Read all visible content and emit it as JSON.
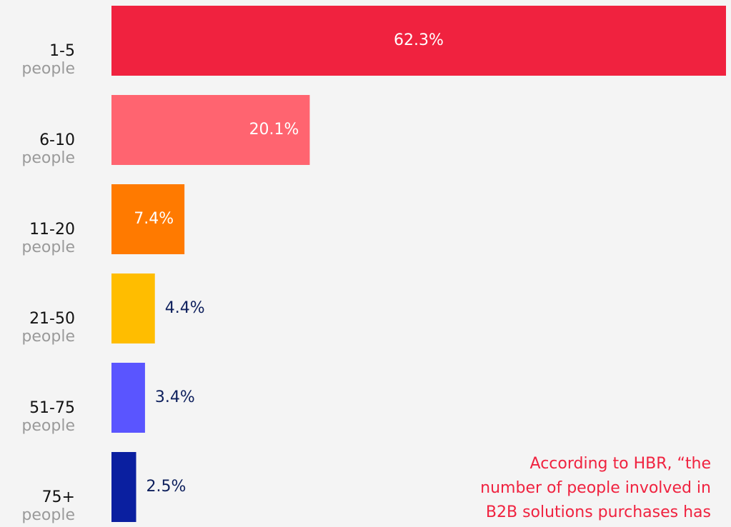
{
  "chart_data": {
    "type": "bar",
    "orientation": "horizontal",
    "categories": [
      "1-5",
      "6-10",
      "11-20",
      "21-50",
      "51-75",
      "75+"
    ],
    "category_unit": "people",
    "values": [
      62.3,
      20.1,
      7.4,
      4.4,
      3.4,
      2.5
    ],
    "value_labels": [
      "62.3%",
      "20.1%",
      "7.4%",
      "4.4%",
      "3.4%",
      "2.5%"
    ],
    "colors": [
      "#f0223f",
      "#ff6470",
      "#ff7a00",
      "#ffbd00",
      "#5a55ff",
      "#0a1fa0"
    ],
    "annotation": [
      "According to HBR, “the",
      "number of people involved in",
      "B2B solutions purchases has"
    ]
  }
}
